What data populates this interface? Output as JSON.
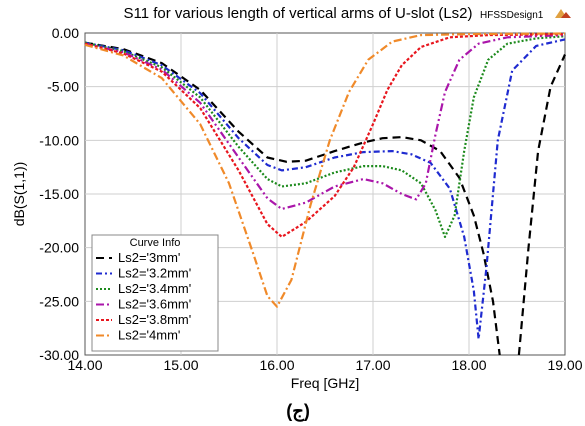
{
  "design_name": "HFSSDesign1",
  "caption": "(ج)",
  "chart_data": {
    "type": "line",
    "title": "S11 for various length of vertical arms of U-slot (Ls2)",
    "xlabel": "Freq [GHz]",
    "ylabel": "dB(S(1,1))",
    "xlim": [
      14.0,
      19.0
    ],
    "ylim": [
      -30.0,
      0.0
    ],
    "x_ticks": [
      "14.00",
      "15.00",
      "16.00",
      "17.00",
      "18.00",
      "19.00"
    ],
    "y_ticks": [
      "0.00",
      "-5.00",
      "-10.00",
      "-15.00",
      "-20.00",
      "-25.00",
      "-30.00"
    ],
    "grid": true,
    "legend": {
      "title": "Curve Info",
      "placement": "bottom-left"
    },
    "series": [
      {
        "name": "Ls2='3mm'",
        "color": "#000000",
        "dash": "8,5",
        "points": [
          [
            14.0,
            -0.9
          ],
          [
            14.4,
            -1.5
          ],
          [
            14.8,
            -2.8
          ],
          [
            15.2,
            -5.3
          ],
          [
            15.6,
            -9.2
          ],
          [
            15.9,
            -11.6
          ],
          [
            16.1,
            -12.0
          ],
          [
            16.3,
            -11.9
          ],
          [
            16.6,
            -11.0
          ],
          [
            16.9,
            -10.2
          ],
          [
            17.1,
            -9.8
          ],
          [
            17.3,
            -9.7
          ],
          [
            17.5,
            -10.0
          ],
          [
            17.7,
            -11.0
          ],
          [
            17.9,
            -13.5
          ],
          [
            18.05,
            -17.0
          ],
          [
            18.15,
            -20.5
          ],
          [
            18.25,
            -25.0
          ],
          [
            18.32,
            -30.0
          ]
        ],
        "points_b": [
          [
            18.52,
            -30.0
          ],
          [
            18.62,
            -20.0
          ],
          [
            18.72,
            -11.0
          ],
          [
            18.85,
            -5.0
          ],
          [
            19.0,
            -2.0
          ]
        ]
      },
      {
        "name": "Ls2='3.2mm'",
        "color": "#1f2bd0",
        "dash": "6,3,2,3",
        "points": [
          [
            14.0,
            -0.9
          ],
          [
            14.4,
            -1.6
          ],
          [
            14.8,
            -3.0
          ],
          [
            15.2,
            -5.6
          ],
          [
            15.6,
            -9.8
          ],
          [
            15.9,
            -12.3
          ],
          [
            16.05,
            -12.8
          ],
          [
            16.3,
            -12.5
          ],
          [
            16.6,
            -11.6
          ],
          [
            16.9,
            -11.1
          ],
          [
            17.2,
            -11.0
          ],
          [
            17.4,
            -11.3
          ],
          [
            17.6,
            -12.1
          ],
          [
            17.8,
            -14.5
          ],
          [
            17.95,
            -19.0
          ],
          [
            18.05,
            -24.0
          ],
          [
            18.1,
            -28.5
          ],
          [
            18.18,
            -22.0
          ],
          [
            18.3,
            -10.0
          ],
          [
            18.45,
            -3.5
          ],
          [
            18.7,
            -1.2
          ],
          [
            19.0,
            -0.6
          ]
        ]
      },
      {
        "name": "Ls2='3.4mm'",
        "color": "#1c8a1c",
        "dash": "2,2",
        "points": [
          [
            14.0,
            -0.9
          ],
          [
            14.4,
            -1.7
          ],
          [
            14.8,
            -3.2
          ],
          [
            15.2,
            -6.0
          ],
          [
            15.6,
            -10.6
          ],
          [
            15.9,
            -13.6
          ],
          [
            16.05,
            -14.3
          ],
          [
            16.3,
            -14.0
          ],
          [
            16.6,
            -13.0
          ],
          [
            16.9,
            -12.4
          ],
          [
            17.1,
            -12.4
          ],
          [
            17.3,
            -12.8
          ],
          [
            17.5,
            -14.0
          ],
          [
            17.65,
            -16.5
          ],
          [
            17.75,
            -19.0
          ],
          [
            17.85,
            -17.0
          ],
          [
            17.95,
            -11.0
          ],
          [
            18.05,
            -6.0
          ],
          [
            18.2,
            -2.5
          ],
          [
            18.4,
            -1.0
          ],
          [
            18.7,
            -0.5
          ],
          [
            19.0,
            -0.3
          ]
        ]
      },
      {
        "name": "Ls2='3.6mm'",
        "color": "#aa16aa",
        "dash": "8,3,2,3,2,3",
        "points": [
          [
            14.0,
            -1.0
          ],
          [
            14.4,
            -1.8
          ],
          [
            14.8,
            -3.4
          ],
          [
            15.2,
            -6.5
          ],
          [
            15.6,
            -11.6
          ],
          [
            15.9,
            -15.4
          ],
          [
            16.05,
            -16.4
          ],
          [
            16.3,
            -15.8
          ],
          [
            16.6,
            -14.3
          ],
          [
            16.9,
            -13.6
          ],
          [
            17.1,
            -14.0
          ],
          [
            17.3,
            -15.0
          ],
          [
            17.45,
            -15.5
          ],
          [
            17.55,
            -14.0
          ],
          [
            17.65,
            -9.5
          ],
          [
            17.75,
            -5.5
          ],
          [
            17.9,
            -2.5
          ],
          [
            18.1,
            -1.0
          ],
          [
            18.4,
            -0.4
          ],
          [
            19.0,
            -0.2
          ]
        ]
      },
      {
        "name": "Ls2='3.8mm'",
        "color": "#e8161e",
        "dash": "3,2",
        "points": [
          [
            14.0,
            -1.0
          ],
          [
            14.4,
            -1.9
          ],
          [
            14.8,
            -3.6
          ],
          [
            15.2,
            -7.0
          ],
          [
            15.6,
            -12.8
          ],
          [
            15.9,
            -17.8
          ],
          [
            16.05,
            -19.0
          ],
          [
            16.3,
            -17.6
          ],
          [
            16.6,
            -15.2
          ],
          [
            16.8,
            -12.5
          ],
          [
            17.0,
            -8.5
          ],
          [
            17.15,
            -5.3
          ],
          [
            17.3,
            -3.0
          ],
          [
            17.5,
            -1.3
          ],
          [
            17.8,
            -0.4
          ],
          [
            18.2,
            -0.2
          ],
          [
            19.0,
            -0.1
          ]
        ]
      },
      {
        "name": "Ls2='4mm'",
        "color": "#f08a2a",
        "dash": "8,3,2,3",
        "points": [
          [
            14.0,
            -1.1
          ],
          [
            14.4,
            -2.1
          ],
          [
            14.8,
            -4.2
          ],
          [
            15.2,
            -8.5
          ],
          [
            15.5,
            -14.0
          ],
          [
            15.75,
            -20.5
          ],
          [
            15.9,
            -24.5
          ],
          [
            16.0,
            -25.5
          ],
          [
            16.15,
            -23.0
          ],
          [
            16.35,
            -16.0
          ],
          [
            16.55,
            -10.0
          ],
          [
            16.75,
            -5.5
          ],
          [
            16.95,
            -2.5
          ],
          [
            17.2,
            -0.8
          ],
          [
            17.5,
            -0.2
          ],
          [
            18.0,
            -0.1
          ],
          [
            19.0,
            -0.05
          ]
        ]
      }
    ]
  }
}
